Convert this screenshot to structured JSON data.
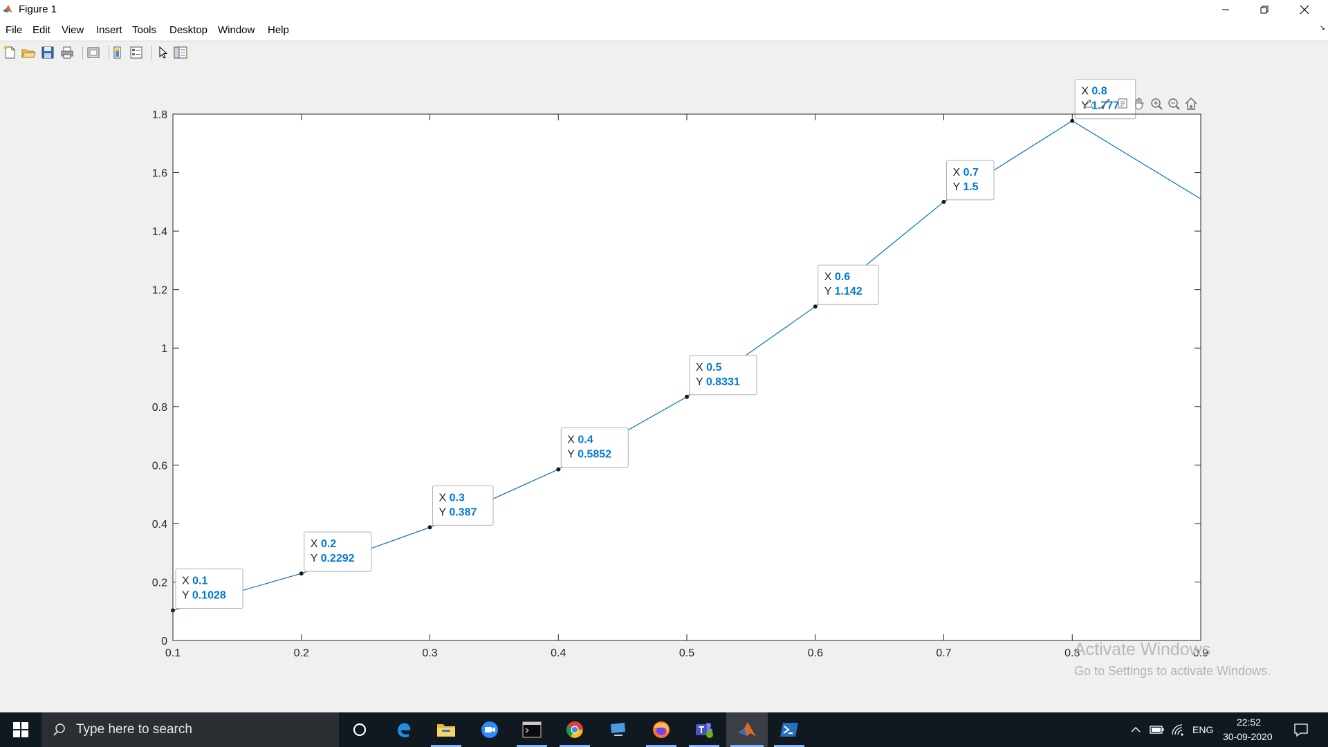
{
  "window": {
    "title": "Figure 1",
    "icon": "matlab-icon",
    "controls": [
      "minimize-icon",
      "restore-icon",
      "close-icon"
    ]
  },
  "menu": {
    "items": [
      "File",
      "Edit",
      "View",
      "Insert",
      "Tools",
      "Desktop",
      "Window",
      "Help"
    ]
  },
  "toolbar": {
    "buttons": [
      "new-figure-icon",
      "open-file-icon",
      "save-icon",
      "print-icon",
      "link-plot-icon",
      "insert-colorbar-icon",
      "insert-legend-icon",
      "edit-plot-icon",
      "property-editor-icon"
    ]
  },
  "axes_toolbar": {
    "buttons": [
      "export-icon",
      "brush-icon",
      "datatip-icon",
      "pan-icon",
      "zoom-in-icon",
      "zoom-out-icon",
      "home-icon"
    ]
  },
  "chart_data": {
    "type": "line",
    "title": "",
    "xlabel": "",
    "ylabel": "",
    "x": [
      0.1,
      0.2,
      0.3,
      0.4,
      0.5,
      0.6,
      0.7,
      0.8,
      0.9
    ],
    "series": [
      {
        "values": [
          0.1028,
          0.2292,
          0.387,
          0.5852,
          0.8331,
          1.142,
          1.5,
          1.777,
          1.51
        ],
        "color": "#0072bd"
      }
    ],
    "xlim": [
      0.1,
      0.9
    ],
    "ylim": [
      0,
      1.8
    ],
    "xticks": [
      "0.1",
      "0.2",
      "0.3",
      "0.4",
      "0.5",
      "0.6",
      "0.7",
      "0.8",
      "0.9"
    ],
    "yticks": [
      "0",
      "0.2",
      "0.4",
      "0.6",
      "0.8",
      "1",
      "1.2",
      "1.4",
      "1.6",
      "1.8"
    ],
    "grid": false,
    "datatips": [
      {
        "x": "0.1",
        "y": "0.1028"
      },
      {
        "x": "0.2",
        "y": "0.2292"
      },
      {
        "x": "0.3",
        "y": "0.387"
      },
      {
        "x": "0.4",
        "y": "0.5852"
      },
      {
        "x": "0.5",
        "y": "0.8331"
      },
      {
        "x": "0.6",
        "y": "1.142"
      },
      {
        "x": "0.7",
        "y": "1.5"
      },
      {
        "x": "0.8",
        "y": "1.777"
      }
    ],
    "datatip_x_label": "X",
    "datatip_y_label": "Y",
    "datatip_value_color": "#0078d4"
  },
  "watermark": {
    "line1": "Activate Windows",
    "line2": "Go to Settings to activate Windows."
  },
  "taskbar": {
    "search_placeholder": "Type here to search",
    "apps": [
      "cortana-icon",
      "edge-icon",
      "file-explorer-icon",
      "zoom-icon",
      "terminal-icon",
      "chrome-icon",
      "remote-desktop-icon",
      "firefox-icon",
      "teams-icon",
      "matlab-icon",
      "powershell-icon"
    ],
    "tray": {
      "language": "ENG",
      "time": "22:52",
      "date": "30-09-2020"
    }
  }
}
